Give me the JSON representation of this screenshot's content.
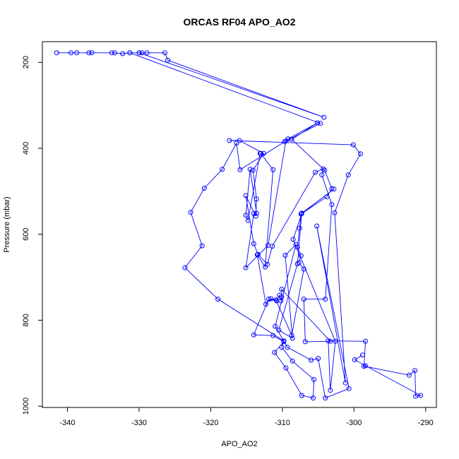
{
  "chart_data": {
    "type": "line",
    "title": "ORCAS RF04 APO_AO2",
    "xlabel": "APO_AO2",
    "ylabel": "Pressure (mbar)",
    "xlim": [
      -343.5,
      -288.5
    ],
    "ylim": [
      1003,
      152
    ],
    "y_reversed": true,
    "grid": false,
    "marker": "open-circle",
    "color": "#0000ff",
    "xticks": [
      {
        "value": -340,
        "label": "-340"
      },
      {
        "value": -330,
        "label": "-330"
      },
      {
        "value": -320,
        "label": "-320"
      },
      {
        "value": -310,
        "label": "-310"
      },
      {
        "value": -300,
        "label": "-300"
      },
      {
        "value": -290,
        "label": "-290"
      }
    ],
    "yticks": [
      {
        "value": 200,
        "label": "200"
      },
      {
        "value": 400,
        "label": "400"
      },
      {
        "value": 600,
        "label": "600"
      },
      {
        "value": 800,
        "label": "800"
      },
      {
        "value": 1000,
        "label": "1000"
      }
    ],
    "series": [
      {
        "points": [
          [
            -341.5,
            178
          ],
          [
            -339.5,
            178
          ],
          [
            -338.7,
            178
          ],
          [
            -337.0,
            178
          ],
          [
            -336.6,
            178
          ],
          [
            -333.8,
            178
          ],
          [
            -333.4,
            178
          ],
          [
            -332.3,
            180
          ],
          [
            -331.3,
            178
          ],
          [
            -330.0,
            178
          ],
          [
            -329.6,
            178
          ],
          [
            -328.9,
            178
          ],
          [
            -326.4,
            178
          ],
          [
            -326.0,
            195
          ],
          [
            -304.2,
            328
          ],
          [
            -330.0,
            178
          ],
          [
            -331.3,
            178
          ],
          [
            -304.7,
            342
          ],
          [
            -309.7,
            385
          ],
          [
            -315.9,
            450
          ],
          [
            -316.4,
            388
          ],
          [
            -318.4,
            449
          ],
          [
            -320.9,
            493
          ],
          [
            -322.8,
            549
          ],
          [
            -321.2,
            627
          ],
          [
            -323.6,
            678
          ],
          [
            -319.0,
            751
          ],
          [
            -309.8,
            848
          ],
          [
            -310.1,
            863
          ],
          [
            -308.6,
            895
          ],
          [
            -305.6,
            938
          ],
          [
            -305.7,
            981
          ],
          [
            -307.3,
            975
          ],
          [
            -309.5,
            911
          ],
          [
            -311.1,
            875
          ],
          [
            -309.8,
            850
          ],
          [
            -311.3,
            836
          ],
          [
            -314.0,
            834
          ],
          [
            -311.9,
            751
          ],
          [
            -310.8,
            755
          ],
          [
            -310.4,
            742
          ],
          [
            -310.2,
            755
          ],
          [
            -310.1,
            746
          ],
          [
            -310.1,
            728
          ],
          [
            -303.3,
            849
          ],
          [
            -306.8,
            850
          ],
          [
            -307.0,
            751
          ],
          [
            -304.0,
            751
          ],
          [
            -303.1,
            531
          ],
          [
            -304.5,
            462
          ],
          [
            -304.3,
            448
          ],
          [
            -305.4,
            456
          ],
          [
            -311.4,
            628
          ],
          [
            -312.1,
            670
          ],
          [
            -313.4,
            647
          ],
          [
            -314.0,
            622
          ],
          [
            -315.1,
            510
          ],
          [
            -313.7,
            558
          ],
          [
            -313.6,
            518
          ],
          [
            -314.1,
            451
          ],
          [
            -312.6,
            412
          ],
          [
            -316.0,
            382
          ],
          [
            -317.4,
            382
          ],
          [
            -300.1,
            392
          ],
          [
            -299.1,
            413
          ],
          [
            -300.8,
            462
          ],
          [
            -302.7,
            550
          ],
          [
            -301.2,
            946
          ],
          [
            -305.2,
            581
          ],
          [
            -300.7,
            959
          ],
          [
            -304.0,
            981
          ],
          [
            -305.0,
            889
          ],
          [
            -306.0,
            893
          ],
          [
            -309.3,
            863
          ],
          [
            -311.0,
            814
          ],
          [
            -308.1,
            624
          ],
          [
            -309.6,
            649
          ],
          [
            -308.6,
            842
          ],
          [
            -310.5,
            823
          ],
          [
            -307.9,
            669
          ],
          [
            -307.3,
            551
          ],
          [
            -302.8,
            495
          ],
          [
            -307.4,
            553
          ],
          [
            -307.6,
            586
          ],
          [
            -307.9,
            630
          ],
          [
            -307.4,
            650
          ],
          [
            -307.7,
            666
          ],
          [
            -307.0,
            681
          ],
          [
            -308.7,
            835
          ],
          [
            -310.9,
            753
          ],
          [
            -311.6,
            750
          ],
          [
            -312.3,
            763
          ],
          [
            -313.5,
            648
          ],
          [
            -312.4,
            676
          ],
          [
            -311.3,
            450
          ],
          [
            -313.0,
            412
          ],
          [
            -313.1,
            412
          ],
          [
            -314.8,
            568
          ],
          [
            -315.1,
            556
          ],
          [
            -314.5,
            449
          ],
          [
            -313.6,
            551
          ],
          [
            -314.0,
            552
          ],
          [
            -315.1,
            678
          ],
          [
            -312.0,
            626
          ],
          [
            -309.5,
            383
          ],
          [
            -309.2,
            378
          ],
          [
            -305.1,
            341
          ],
          [
            -308.7,
            379
          ],
          [
            -304.1,
            451
          ],
          [
            -303.1,
            494
          ],
          [
            -303.8,
            513
          ],
          [
            -307.3,
            552
          ],
          [
            -308.5,
            612
          ],
          [
            -302.6,
            849
          ],
          [
            -303.3,
            963
          ],
          [
            -303.6,
            848
          ],
          [
            -298.4,
            849
          ],
          [
            -298.6,
            907
          ],
          [
            -292.3,
            928
          ],
          [
            -291.5,
            917
          ],
          [
            -291.4,
            977
          ],
          [
            -290.7,
            975
          ],
          [
            -298.4,
            906
          ],
          [
            -299.9,
            892
          ],
          [
            -298.8,
            881
          ]
        ]
      }
    ]
  }
}
